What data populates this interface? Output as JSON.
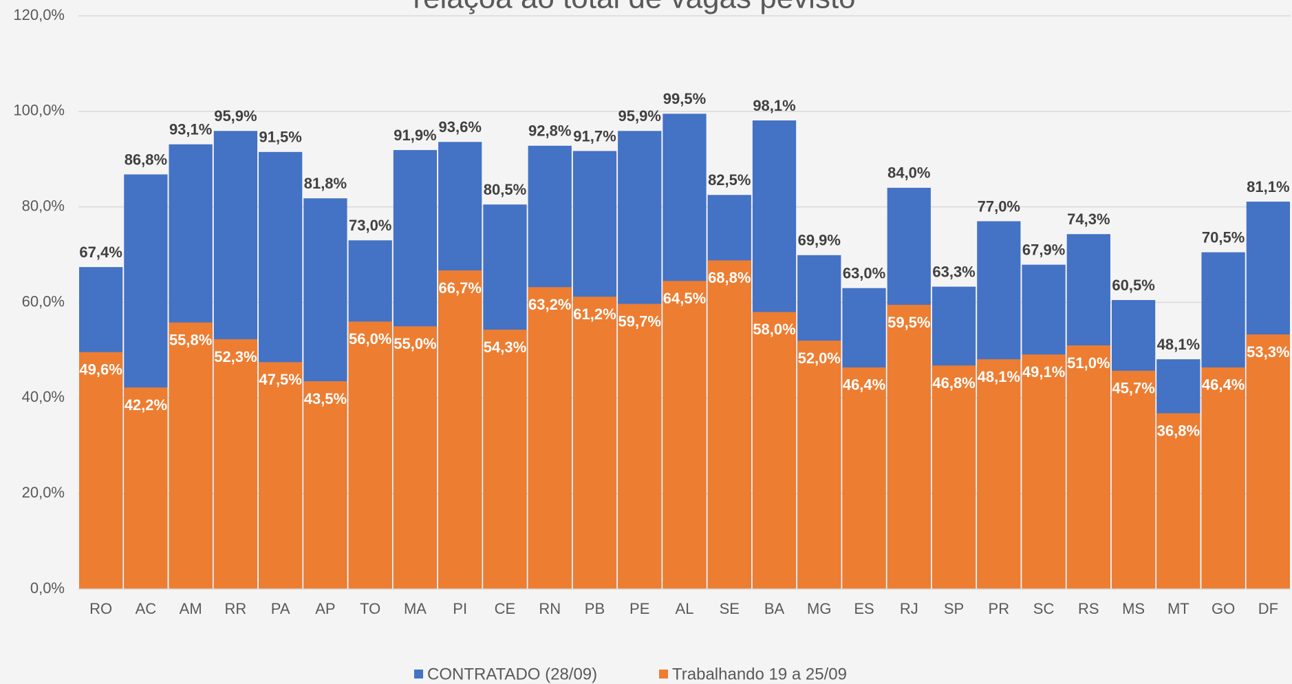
{
  "chart_data": {
    "type": "bar",
    "title": "relaçoa ao total de vagas pevisto",
    "categories": [
      "RO",
      "AC",
      "AM",
      "RR",
      "PA",
      "AP",
      "TO",
      "MA",
      "PI",
      "CE",
      "RN",
      "PB",
      "PE",
      "AL",
      "SE",
      "BA",
      "MG",
      "ES",
      "RJ",
      "SP",
      "PR",
      "SC",
      "RS",
      "MS",
      "MT",
      "GO",
      "DF"
    ],
    "series": [
      {
        "name": "CONTRATADO (28/09)",
        "color": "#4472c4",
        "values": [
          67.4,
          86.8,
          93.1,
          95.9,
          91.5,
          81.8,
          73.0,
          91.9,
          93.6,
          80.5,
          92.8,
          91.7,
          95.9,
          99.5,
          82.5,
          98.1,
          69.9,
          63.0,
          84.0,
          63.3,
          77.0,
          67.9,
          74.3,
          60.5,
          48.1,
          70.5,
          81.1
        ],
        "value_labels": [
          "67,4%",
          "86,8%",
          "93,1%",
          "95,9%",
          "91,5%",
          "81,8%",
          "73,0%",
          "91,9%",
          "93,6%",
          "80,5%",
          "92,8%",
          "91,7%",
          "95,9%",
          "99,5%",
          "82,5%",
          "98,1%",
          "69,9%",
          "63,0%",
          "84,0%",
          "63,3%",
          "77,0%",
          "67,9%",
          "74,3%",
          "60,5%",
          "48,1%",
          "70,5%",
          "81,1%"
        ]
      },
      {
        "name": "Trabalhando 19 a 25/09",
        "color": "#ed7d31",
        "values": [
          49.6,
          42.2,
          55.8,
          52.3,
          47.5,
          43.5,
          56.0,
          55.0,
          66.7,
          54.3,
          63.2,
          61.2,
          59.7,
          64.5,
          68.8,
          58.0,
          52.0,
          46.4,
          59.5,
          46.8,
          48.1,
          49.1,
          51.0,
          45.7,
          36.8,
          46.4,
          53.3
        ],
        "value_labels": [
          "49,6%",
          "42,2%",
          "55,8%",
          "52,3%",
          "47,5%",
          "43,5%",
          "56,0%",
          "55,0%",
          "66,7%",
          "54,3%",
          "63,2%",
          "61,2%",
          "59,7%",
          "64,5%",
          "68,8%",
          "58,0%",
          "52,0%",
          "46,4%",
          "59,5%",
          "46,8%",
          "48,1%",
          "49,1%",
          "51,0%",
          "45,7%",
          "36,8%",
          "46,4%",
          "53,3%"
        ]
      }
    ],
    "ylim": [
      0,
      120
    ],
    "yticks": [
      {
        "value": 0,
        "label": "0,0%"
      },
      {
        "value": 20,
        "label": "20,0%"
      },
      {
        "value": 40,
        "label": "40,0%"
      },
      {
        "value": 60,
        "label": "60,0%"
      },
      {
        "value": 80,
        "label": "80,0%"
      },
      {
        "value": 100,
        "label": "100,0%"
      },
      {
        "value": 120,
        "label": "120,0%"
      }
    ],
    "grid": true,
    "legend": "bottom"
  }
}
